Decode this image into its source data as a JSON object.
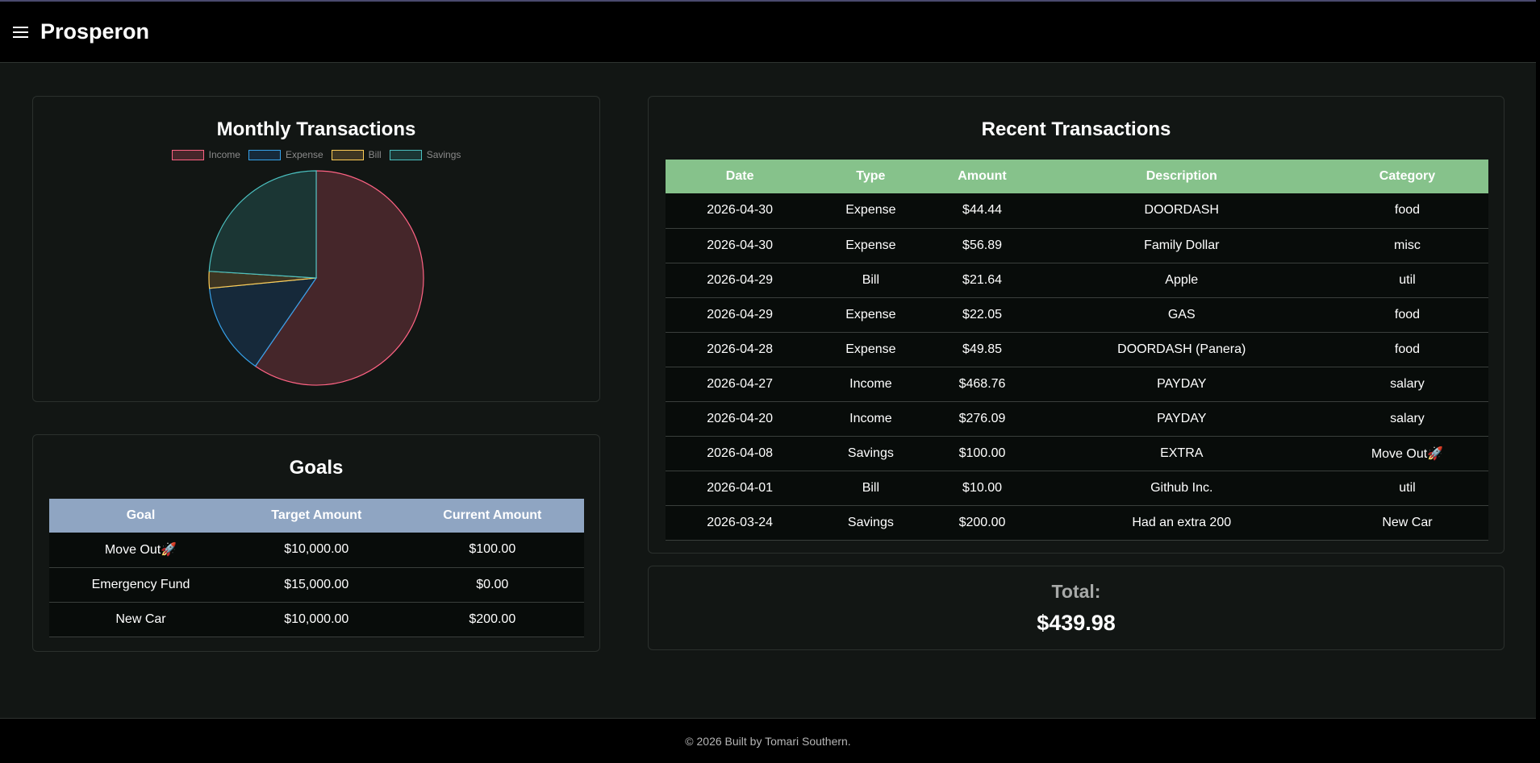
{
  "app": {
    "brand": "Prosperon"
  },
  "pie_card": {
    "title": "Monthly Transactions"
  },
  "chart_data": {
    "type": "pie",
    "title": "Monthly Transactions",
    "labels": [
      "Income",
      "Expense",
      "Bill",
      "Savings"
    ],
    "values": [
      744.85,
      173.23,
      31.64,
      300.0
    ],
    "colors": {
      "Income": {
        "stroke": "#ff6384",
        "fill": "#45262a"
      },
      "Expense": {
        "stroke": "#36a2eb",
        "fill": "#16293a"
      },
      "Bill": {
        "stroke": "#ffcd56",
        "fill": "#3d3522"
      },
      "Savings": {
        "stroke": "#4bc0c0",
        "fill": "#1b3634"
      }
    },
    "legend_position": "top"
  },
  "goals": {
    "title": "Goals",
    "headers": [
      "Goal",
      "Target Amount",
      "Current Amount"
    ],
    "rows": [
      [
        "Move Out🚀",
        "$10,000.00",
        "$100.00"
      ],
      [
        "Emergency Fund",
        "$15,000.00",
        "$0.00"
      ],
      [
        "New Car",
        "$10,000.00",
        "$200.00"
      ]
    ]
  },
  "transactions": {
    "title": "Recent Transactions",
    "headers": [
      "Date",
      "Type",
      "Amount",
      "Description",
      "Category"
    ],
    "rows": [
      [
        "2026-04-30",
        "Expense",
        "$44.44",
        "DOORDASH",
        "food"
      ],
      [
        "2026-04-30",
        "Expense",
        "$56.89",
        "Family Dollar",
        "misc"
      ],
      [
        "2026-04-29",
        "Bill",
        "$21.64",
        "Apple",
        "util"
      ],
      [
        "2026-04-29",
        "Expense",
        "$22.05",
        "GAS",
        "food"
      ],
      [
        "2026-04-28",
        "Expense",
        "$49.85",
        "DOORDASH (Panera)",
        "food"
      ],
      [
        "2026-04-27",
        "Income",
        "$468.76",
        "PAYDAY",
        "salary"
      ],
      [
        "2026-04-20",
        "Income",
        "$276.09",
        "PAYDAY",
        "salary"
      ],
      [
        "2026-04-08",
        "Savings",
        "$100.00",
        "EXTRA",
        "Move Out🚀"
      ],
      [
        "2026-04-01",
        "Bill",
        "$10.00",
        "Github Inc.",
        "util"
      ],
      [
        "2026-03-24",
        "Savings",
        "$200.00",
        "Had an extra 200",
        "New Car"
      ]
    ]
  },
  "total": {
    "label": "Total:",
    "value": "$439.98"
  },
  "footer": {
    "text": "© 2026 Built by Tomari Southern."
  },
  "icons": {
    "menu": "hamburger-menu-icon"
  }
}
